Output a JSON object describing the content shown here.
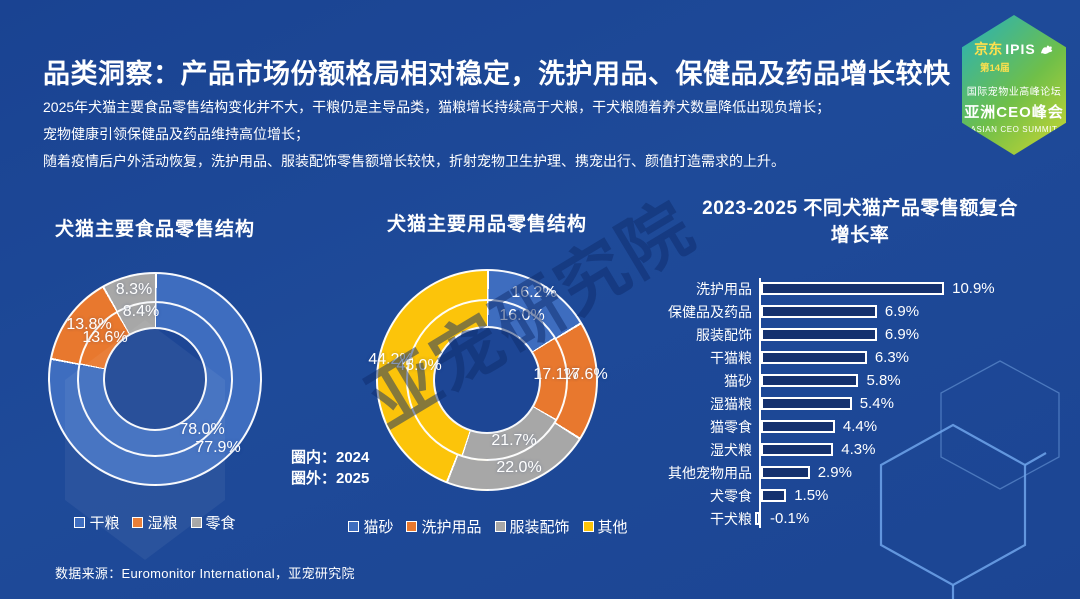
{
  "page": {
    "title": "品类洞察：产品市场份额格局相对稳定，洗护用品、保健品及药品增长较快",
    "description_lines": [
      "2025年犬猫主要食品零售结构变化并不大，干粮仍是主导品类，猫粮增长持续高于犬粮，干犬粮随着养犬数量降低出现负增长；",
      "宠物健康引领保健品及药品维持高位增长；",
      "随着疫情后户外活动恢复，洗护用品、服装配饰零售额增长较快，折射宠物卫生护理、携宠出行、颜值打造需求的上升。"
    ],
    "source": "数据来源：Euromonitor International，亚宠研究院",
    "watermark": "亚宠研究院"
  },
  "badge": {
    "brand": "京东",
    "ipis": "IPIS",
    "edition": "第14届",
    "forum": "国际宠物业高峰论坛",
    "summit_cn": "亚洲CEO峰会",
    "summit_en": "ASIAN CEO SUMMIT"
  },
  "ring_note": {
    "inner": "圈内：2024",
    "outer": "圈外：2025"
  },
  "colors": {
    "background": "#1d4796",
    "slice_blue": "#3e6dbf",
    "slice_orange": "#e8782e",
    "slice_gray": "#a7a7a7",
    "slice_yellow": "#fcc40a",
    "bar_fill": "#15316e",
    "badge_teal": "#2fb3ae",
    "badge_lime": "#c3d434",
    "badge_yellow": "#ffe14d"
  },
  "chart_data": [
    {
      "type": "pie",
      "subtype": "double-ring-donut",
      "title": "犬猫主要食品零售结构",
      "categories": [
        "干粮",
        "湿粮",
        "零食"
      ],
      "series": [
        {
          "name": "2024",
          "ring": "inner",
          "values": [
            78.0,
            13.6,
            8.4
          ]
        },
        {
          "name": "2025",
          "ring": "outer",
          "values": [
            77.9,
            13.8,
            8.3
          ]
        }
      ],
      "colors": [
        "#3e6dbf",
        "#e8782e",
        "#a7a7a7"
      ],
      "unit": "%"
    },
    {
      "type": "pie",
      "subtype": "double-ring-donut",
      "title": "犬猫主要用品零售结构",
      "categories": [
        "猫砂",
        "洗护用品",
        "服装配饰",
        "其他"
      ],
      "series": [
        {
          "name": "2024",
          "ring": "inner",
          "values": [
            16.0,
            17.1,
            21.7,
            45.0
          ]
        },
        {
          "name": "2025",
          "ring": "outer",
          "values": [
            16.2,
            17.6,
            22.0,
            44.2
          ]
        }
      ],
      "colors": [
        "#3e6dbf",
        "#e8782e",
        "#a7a7a7",
        "#fcc40a"
      ],
      "unit": "%"
    },
    {
      "type": "bar",
      "orientation": "horizontal",
      "title": "2023-2025 不同犬猫产品零售额复合增长率",
      "title_lines": [
        "2023-2025 不同犬猫产品零售额复合",
        "增长率"
      ],
      "categories": [
        "洗护用品",
        "保健品及药品",
        "服装配饰",
        "干猫粮",
        "猫砂",
        "湿猫粮",
        "猫零食",
        "湿犬粮",
        "其他宠物用品",
        "犬零食",
        "干犬粮"
      ],
      "values": [
        10.9,
        6.9,
        6.9,
        6.3,
        5.8,
        5.4,
        4.4,
        4.3,
        2.9,
        1.5,
        -0.1
      ],
      "unit": "%",
      "xlim": [
        0,
        12
      ],
      "grid": false,
      "legend_position": "none"
    }
  ]
}
